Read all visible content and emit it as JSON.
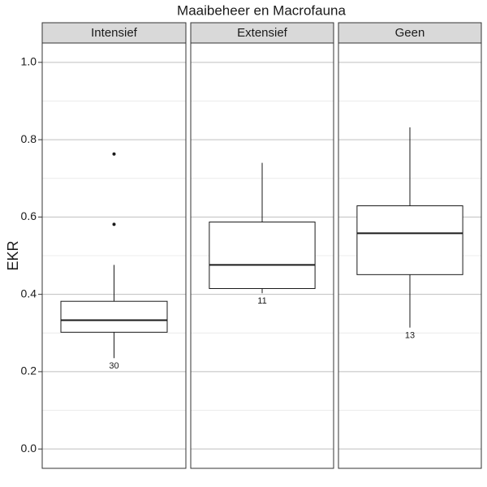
{
  "chart_data": {
    "type": "box",
    "title": "Maaibeheer en Macrofauna",
    "y_label": "EKR",
    "categories": [
      "Intensief",
      "Extensief",
      "Geen"
    ],
    "boxes": [
      {
        "whislo": 0.235,
        "q1": 0.302,
        "med": 0.333,
        "q3": 0.382,
        "whishi": 0.476,
        "fliers": [
          0.581,
          0.763
        ],
        "n": 30
      },
      {
        "whislo": 0.403,
        "q1": 0.415,
        "med": 0.476,
        "q3": 0.587,
        "whishi": 0.74,
        "fliers": [],
        "n": 11
      },
      {
        "whislo": 0.314,
        "q1": 0.451,
        "med": 0.558,
        "q3": 0.629,
        "whishi": 0.832,
        "fliers": [],
        "n": 13
      }
    ],
    "ylim": [
      -0.05,
      1.05
    ],
    "yticks": [
      {
        "value": 0,
        "label": "0.0"
      },
      {
        "value": 0.2,
        "label": "0.2"
      },
      {
        "value": 0.4,
        "label": "0.4"
      },
      {
        "value": 0.6,
        "label": "0.6"
      },
      {
        "value": 0.8,
        "label": "0.8"
      },
      {
        "value": 1,
        "label": "1.0"
      }
    ],
    "grid": true,
    "minor_grid": true,
    "box_color": "#1a1a1a",
    "strip_color": "#d9d9d9",
    "grid_color": "#bfbfbf",
    "minor_grid_color": "#ececec"
  }
}
